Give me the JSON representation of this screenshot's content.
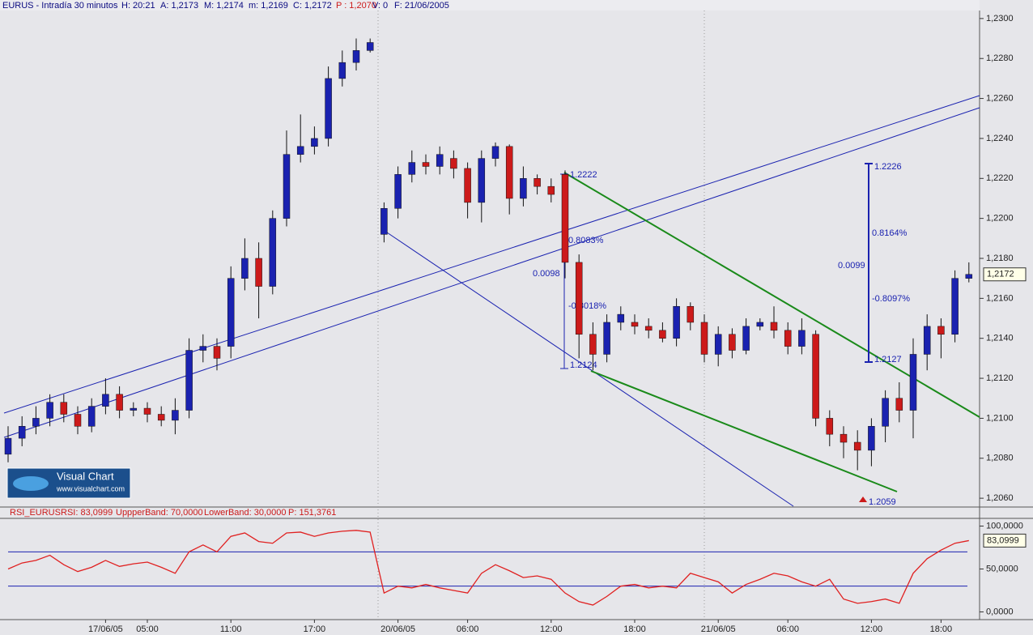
{
  "chart_data": {
    "type": "candlestick",
    "header": [
      "EURUS - Intradía 30 minutos",
      "H: 20:21",
      "A: 1,2173",
      "M: 1,2174",
      "m: 1,2169",
      "C: 1,2172",
      "P : 1,2070",
      "V: 0",
      "F: 21/06/2005"
    ],
    "categories": [
      null,
      null,
      null,
      null,
      null,
      null,
      null,
      "17/06/05",
      null,
      null,
      "05:00",
      null,
      null,
      null,
      null,
      null,
      "11:00",
      null,
      null,
      null,
      null,
      null,
      "17:00",
      null,
      null,
      null,
      null,
      null,
      "20/06/05",
      null,
      null,
      null,
      null,
      "06:00",
      null,
      null,
      null,
      null,
      null,
      "12:00",
      null,
      null,
      null,
      null,
      null,
      "18:00",
      null,
      null,
      null,
      null,
      null,
      "21/06/05",
      null,
      null,
      null,
      null,
      "06:00",
      null,
      null,
      null,
      null,
      null,
      "12:00",
      null,
      null,
      null,
      null,
      "18:00",
      null,
      null
    ],
    "open": [
      1.2082,
      1.209,
      1.2096,
      1.21,
      1.2108,
      1.2102,
      1.2096,
      1.2106,
      1.2112,
      1.2104,
      1.2105,
      1.2102,
      1.2099,
      1.2104,
      1.2134,
      1.2136,
      1.2136,
      1.217,
      1.218,
      1.2166,
      1.22,
      1.2232,
      1.2236,
      1.224,
      1.227,
      1.2278,
      1.2284,
      1.2192,
      1.2205,
      1.2222,
      1.2228,
      1.2226,
      1.223,
      1.2225,
      1.2208,
      1.223,
      1.2236,
      1.221,
      1.222,
      1.2216,
      1.2222,
      1.2178,
      1.2142,
      1.2132,
      1.2148,
      1.2148,
      1.2146,
      1.2144,
      1.214,
      1.2156,
      1.2148,
      1.2132,
      1.2142,
      1.2134,
      1.2146,
      1.2148,
      1.2144,
      1.2136,
      1.2142,
      1.21,
      1.2092,
      1.2088,
      1.2084,
      1.2096,
      1.211,
      1.2104,
      1.2132,
      1.2146,
      1.2142,
      1.217
    ],
    "high": [
      1.2096,
      1.2101,
      1.2106,
      1.2112,
      1.2112,
      1.2106,
      1.211,
      1.212,
      1.2116,
      1.2108,
      1.2108,
      1.2106,
      1.211,
      1.214,
      1.2142,
      1.214,
      1.2176,
      1.219,
      1.2188,
      1.2204,
      1.2244,
      1.2252,
      1.2246,
      1.2276,
      1.2284,
      1.229,
      1.229,
      1.2208,
      1.2226,
      1.2234,
      1.2232,
      1.2236,
      1.2234,
      1.2228,
      1.2234,
      1.2238,
      1.2237,
      1.2226,
      1.2222,
      1.222,
      1.2224,
      1.2182,
      1.2148,
      1.2152,
      1.2156,
      1.2152,
      1.215,
      1.2148,
      1.216,
      1.2158,
      1.2152,
      1.2146,
      1.2145,
      1.215,
      1.215,
      1.2156,
      1.2148,
      1.215,
      1.2144,
      1.2104,
      1.2096,
      1.2094,
      1.21,
      1.2114,
      1.2118,
      1.214,
      1.2152,
      1.215,
      1.2174,
      1.2178
    ],
    "low": [
      1.2078,
      1.2086,
      1.2092,
      1.2096,
      1.2098,
      1.2092,
      1.2093,
      1.2102,
      1.21,
      1.2101,
      1.2098,
      1.2096,
      1.2092,
      1.21,
      1.2128,
      1.2124,
      1.213,
      1.2164,
      1.215,
      1.2162,
      1.2196,
      1.2228,
      1.2232,
      1.2236,
      1.2266,
      1.2274,
      1.2283,
      1.2188,
      1.22,
      1.2218,
      1.2222,
      1.2222,
      1.222,
      1.22,
      1.2198,
      1.2226,
      1.2202,
      1.2206,
      1.2212,
      1.2208,
      1.217,
      1.213,
      1.2124,
      1.2128,
      1.2144,
      1.2142,
      1.214,
      1.2138,
      1.2136,
      1.2144,
      1.2128,
      1.2126,
      1.213,
      1.2132,
      1.2144,
      1.214,
      1.2132,
      1.2132,
      1.2096,
      1.2086,
      1.208,
      1.2074,
      1.2076,
      1.2088,
      1.2098,
      1.209,
      1.2124,
      1.213,
      1.2138,
      1.2168
    ],
    "close": [
      1.209,
      1.2096,
      1.21,
      1.2108,
      1.2102,
      1.2096,
      1.2106,
      1.2112,
      1.2104,
      1.2105,
      1.2102,
      1.2099,
      1.2104,
      1.2134,
      1.2136,
      1.213,
      1.217,
      1.218,
      1.2166,
      1.22,
      1.2232,
      1.2236,
      1.224,
      1.227,
      1.2278,
      1.2284,
      1.2288,
      1.2205,
      1.2222,
      1.2228,
      1.2226,
      1.2232,
      1.2225,
      1.2208,
      1.223,
      1.2236,
      1.221,
      1.222,
      1.2216,
      1.2212,
      1.2178,
      1.2142,
      1.2132,
      1.2148,
      1.2152,
      1.2146,
      1.2144,
      1.214,
      1.2156,
      1.2148,
      1.2132,
      1.2142,
      1.2134,
      1.2146,
      1.2148,
      1.2144,
      1.2136,
      1.2144,
      1.21,
      1.2092,
      1.2088,
      1.2084,
      1.2096,
      1.211,
      1.2104,
      1.2132,
      1.2146,
      1.2142,
      1.217,
      1.2172
    ],
    "up_color": "#1a22b0",
    "down_color": "#cc1a1a",
    "ylim": [
      1.2056,
      1.2304
    ],
    "yticks": [
      {
        "value": 1.23,
        "label": "1,2300"
      },
      {
        "value": 1.228,
        "label": "1,2280"
      },
      {
        "value": 1.226,
        "label": "1,2260"
      },
      {
        "value": 1.224,
        "label": "1,2240"
      },
      {
        "value": 1.222,
        "label": "1,2220"
      },
      {
        "value": 1.22,
        "label": "1,2200"
      },
      {
        "value": 1.218,
        "label": "1,2180"
      },
      {
        "value": 1.216,
        "label": "1,2160"
      },
      {
        "value": 1.214,
        "label": "1,2140"
      },
      {
        "value": 1.212,
        "label": "1,2120"
      },
      {
        "value": 1.21,
        "label": "1,2100"
      },
      {
        "value": 1.208,
        "label": "1,2080"
      },
      {
        "value": 1.206,
        "label": "1,2060"
      }
    ],
    "last_label": "1,2172",
    "annotations": [
      "1.2222",
      "0.8083%",
      "0.0098",
      "-0.8018%",
      "1.2124",
      "1.2226",
      "0.8164%",
      "0.0099",
      "-0.8097%",
      "1.2127",
      "1.2059"
    ],
    "logo": [
      "Visual Chart",
      "www.visualchart.com"
    ],
    "rsi": {
      "header": [
        "RSI_EURUS",
        "RSI: 83,0999",
        "UppperBand: 70,0000",
        "LowerBand: 30,0000",
        "P: 151,3761"
      ],
      "values": [
        50,
        57,
        60,
        66,
        55,
        47,
        52,
        60,
        53,
        56,
        58,
        52,
        45,
        70,
        78,
        70,
        88,
        92,
        82,
        80,
        92,
        93,
        88,
        92,
        94,
        95,
        93,
        22,
        30,
        28,
        32,
        28,
        25,
        22,
        45,
        55,
        48,
        40,
        42,
        38,
        22,
        12,
        8,
        18,
        30,
        32,
        28,
        30,
        28,
        45,
        40,
        35,
        22,
        32,
        38,
        45,
        42,
        35,
        30,
        38,
        15,
        10,
        12,
        15,
        10,
        45,
        62,
        72,
        80,
        83.0999
      ],
      "color": "#e02020",
      "band_color": "#1a22b0",
      "bands": [
        70,
        30
      ],
      "ylim": [
        -9,
        109
      ],
      "yticks": [
        {
          "value": 100,
          "label": "100,0000"
        },
        {
          "value": 50,
          "label": "50,0000"
        },
        {
          "value": 0,
          "label": "0,0000"
        }
      ],
      "last_label": "83,0999"
    }
  }
}
